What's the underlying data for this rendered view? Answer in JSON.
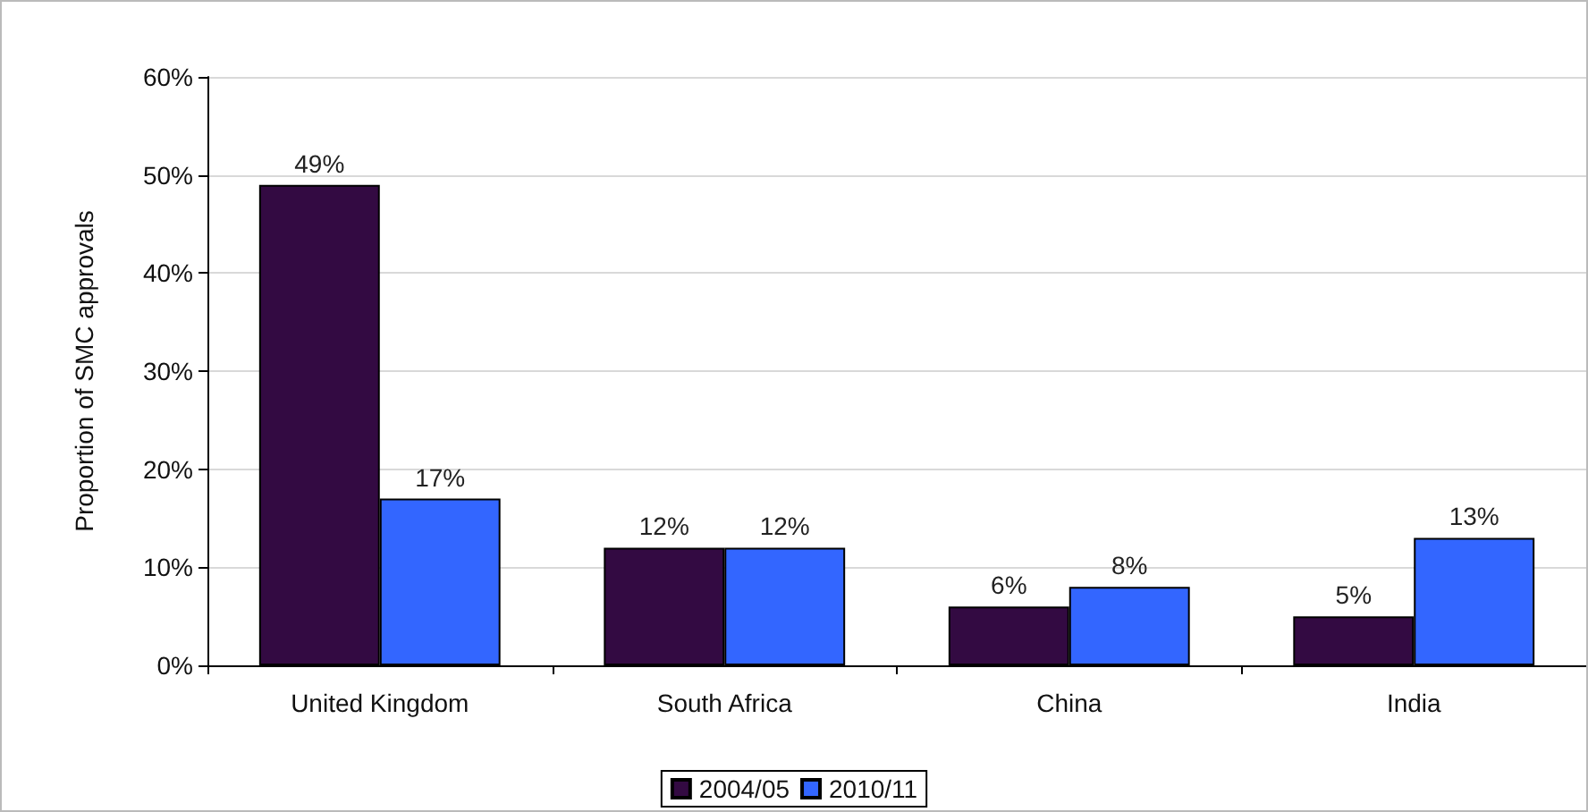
{
  "chart_data": {
    "type": "bar",
    "ylabel": "Proportion of SMC approvals",
    "categories": [
      "United Kingdom",
      "South Africa",
      "China",
      "India"
    ],
    "series": [
      {
        "name": "2004/05",
        "color": "#330a42",
        "values": [
          49,
          12,
          6,
          5
        ],
        "value_labels": [
          "49%",
          "12%",
          "6%",
          "5%"
        ]
      },
      {
        "name": "2010/11",
        "color": "#3366ff",
        "values": [
          17,
          12,
          8,
          13
        ],
        "value_labels": [
          "17%",
          "12%",
          "8%",
          "13%"
        ]
      }
    ],
    "ylim": [
      0,
      60
    ],
    "yticks": [
      {
        "value": 0,
        "label": "0%"
      },
      {
        "value": 10,
        "label": "10%"
      },
      {
        "value": 20,
        "label": "20%"
      },
      {
        "value": 30,
        "label": "30%"
      },
      {
        "value": 40,
        "label": "40%"
      },
      {
        "value": 50,
        "label": "50%"
      },
      {
        "value": 60,
        "label": "60%"
      }
    ],
    "grid": "y",
    "legend": "bottom"
  }
}
